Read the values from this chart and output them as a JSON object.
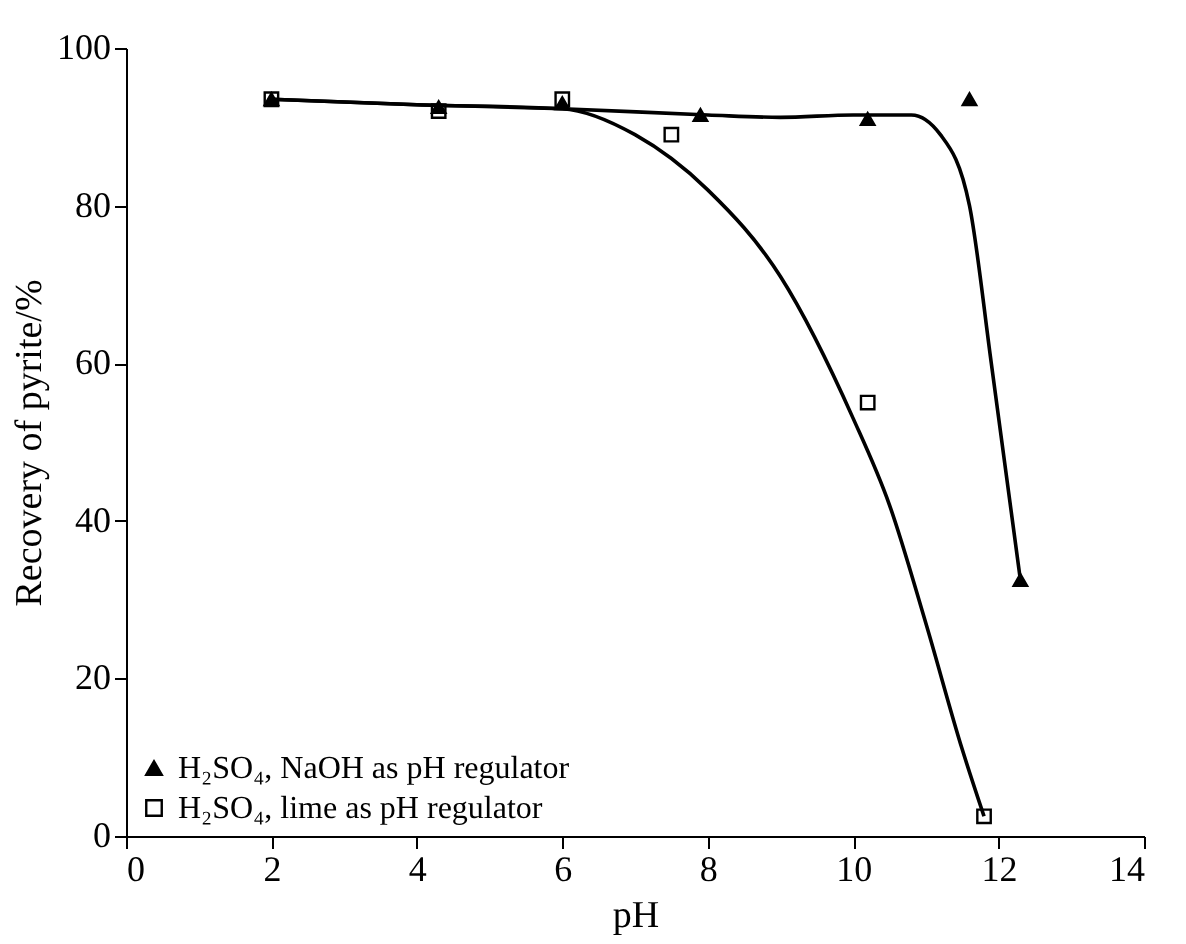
{
  "chart_data": {
    "type": "scatter",
    "xlabel": "pH",
    "ylabel": "Recovery of pyrite/%",
    "xlim": [
      0,
      14
    ],
    "ylim": [
      0,
      100
    ],
    "xticks": [
      0,
      2,
      4,
      6,
      8,
      10,
      12,
      14
    ],
    "yticks": [
      0,
      20,
      40,
      60,
      80,
      100
    ],
    "grid": false,
    "legend": "bottom left",
    "series": [
      {
        "name": "H₂SO₄, NaOH as pH regulator",
        "color": "#000000",
        "marker": "triangle",
        "x": [
          2,
          4.3,
          6,
          7.9,
          10.2,
          11.6,
          12.3
        ],
        "values": [
          93.5,
          92.5,
          93,
          91.5,
          91,
          93.5,
          32.5
        ]
      },
      {
        "name": "H₂SO₄, lime as pH regulator",
        "color": "#000000",
        "marker": "square",
        "x": [
          2,
          4.3,
          6,
          7.5,
          10.2,
          11.8
        ],
        "values": [
          93.5,
          92,
          93.5,
          89,
          55,
          2.5
        ]
      },
      {
        "type": "line",
        "color": "#000000",
        "x": [
          2,
          4,
          6,
          8,
          9,
          10,
          10.8,
          11.2,
          11.6,
          11.9,
          12.3
        ],
        "values": [
          93.5,
          92.8,
          92.3,
          91.5,
          91.2,
          91.5,
          91.5,
          89,
          80,
          60,
          32.5
        ]
      },
      {
        "type": "line",
        "color": "#000000",
        "x": [
          2,
          4,
          6,
          7,
          8,
          9,
          10,
          10.5,
          11,
          11.5,
          11.8
        ],
        "values": [
          93.5,
          92.8,
          92.3,
          89,
          82,
          71,
          53,
          42,
          27,
          11,
          2.5
        ]
      }
    ]
  }
}
